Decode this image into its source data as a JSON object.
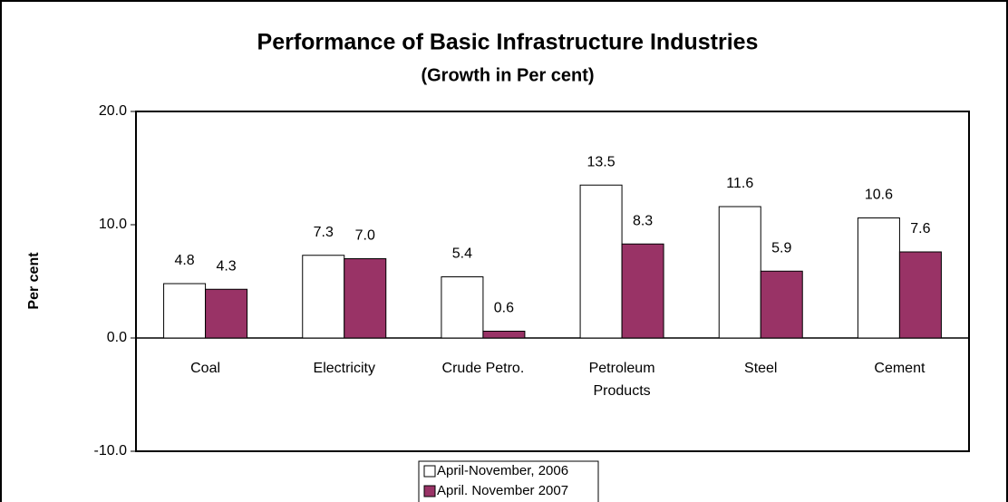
{
  "chart_data": {
    "type": "bar",
    "title": "Performance of Basic Infrastructure Industries",
    "subtitle": "(Growth in Per cent)",
    "y_label": "Per cent",
    "categories": [
      "Coal",
      "Electricity",
      "Crude Petro.",
      "Petroleum\nProducts",
      "Steel",
      "Cement"
    ],
    "series": [
      {
        "name": "April-November, 2006",
        "color": "#ffffff",
        "values": [
          4.8,
          7.3,
          5.4,
          13.5,
          11.6,
          10.6
        ],
        "value_labels": [
          "4.8",
          "7.3",
          "5.4",
          "13.5",
          "11.6",
          "10.6"
        ]
      },
      {
        "name": "April. November 2007",
        "color": "#993366",
        "values": [
          4.3,
          7.0,
          0.6,
          8.3,
          5.9,
          7.6
        ],
        "value_labels": [
          "4.3",
          "7.0",
          "0.6",
          "8.3",
          "5.9",
          "7.6"
        ]
      }
    ],
    "ylim": [
      -10,
      20
    ],
    "yticks": [
      {
        "value": -10,
        "label": "-10.0"
      },
      {
        "value": 0,
        "label": "0.0"
      },
      {
        "value": 10,
        "label": "10.0"
      },
      {
        "value": 20,
        "label": "20.0"
      }
    ],
    "grid": false,
    "legend": "bottom"
  }
}
